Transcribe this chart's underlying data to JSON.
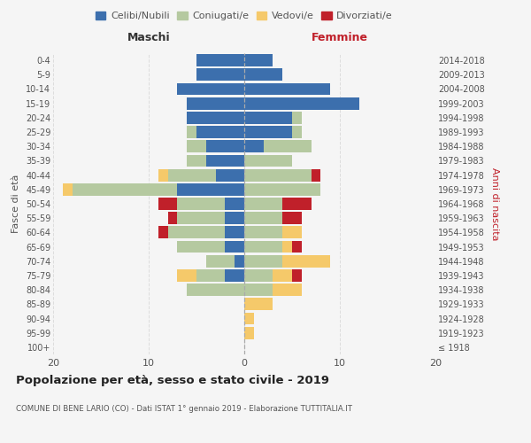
{
  "age_groups": [
    "100+",
    "95-99",
    "90-94",
    "85-89",
    "80-84",
    "75-79",
    "70-74",
    "65-69",
    "60-64",
    "55-59",
    "50-54",
    "45-49",
    "40-44",
    "35-39",
    "30-34",
    "25-29",
    "20-24",
    "15-19",
    "10-14",
    "5-9",
    "0-4"
  ],
  "birth_years": [
    "≤ 1918",
    "1919-1923",
    "1924-1928",
    "1929-1933",
    "1934-1938",
    "1939-1943",
    "1944-1948",
    "1949-1953",
    "1954-1958",
    "1959-1963",
    "1964-1968",
    "1969-1973",
    "1974-1978",
    "1979-1983",
    "1984-1988",
    "1989-1993",
    "1994-1998",
    "1999-2003",
    "2004-2008",
    "2009-2013",
    "2014-2018"
  ],
  "maschi": {
    "celibi": [
      0,
      0,
      0,
      0,
      0,
      2,
      1,
      2,
      2,
      2,
      2,
      7,
      3,
      4,
      4,
      5,
      6,
      6,
      7,
      5,
      5
    ],
    "coniugati": [
      0,
      0,
      0,
      0,
      6,
      3,
      3,
      5,
      6,
      5,
      5,
      11,
      5,
      2,
      2,
      1,
      0,
      0,
      0,
      0,
      0
    ],
    "vedovi": [
      0,
      0,
      0,
      0,
      0,
      2,
      0,
      0,
      0,
      0,
      0,
      1,
      1,
      0,
      0,
      0,
      0,
      0,
      0,
      0,
      0
    ],
    "divorziati": [
      0,
      0,
      0,
      0,
      0,
      0,
      0,
      0,
      1,
      1,
      2,
      0,
      0,
      0,
      0,
      0,
      0,
      0,
      0,
      0,
      0
    ]
  },
  "femmine": {
    "nubili": [
      0,
      0,
      0,
      0,
      0,
      0,
      0,
      0,
      0,
      0,
      0,
      0,
      0,
      0,
      2,
      5,
      5,
      12,
      9,
      4,
      3
    ],
    "coniugate": [
      0,
      0,
      0,
      0,
      3,
      3,
      4,
      4,
      4,
      4,
      4,
      8,
      7,
      5,
      5,
      1,
      1,
      0,
      0,
      0,
      0
    ],
    "vedove": [
      0,
      1,
      1,
      3,
      3,
      2,
      5,
      1,
      2,
      0,
      0,
      0,
      0,
      0,
      0,
      0,
      0,
      0,
      0,
      0,
      0
    ],
    "divorziate": [
      0,
      0,
      0,
      0,
      0,
      1,
      0,
      1,
      0,
      2,
      3,
      0,
      1,
      0,
      0,
      0,
      0,
      0,
      0,
      0,
      0
    ]
  },
  "colors": {
    "celibi_nubili": "#3c6fad",
    "coniugati": "#b5c9a0",
    "vedovi": "#f5c96a",
    "divorziati": "#c0202a"
  },
  "xlim": 20,
  "title": "Popolazione per età, sesso e stato civile - 2019",
  "subtitle": "COMUNE DI BENE LARIO (CO) - Dati ISTAT 1° gennaio 2019 - Elaborazione TUTTITALIA.IT",
  "ylabel_left": "Fasce di età",
  "ylabel_right": "Anni di nascita",
  "xlabel_left": "Maschi",
  "xlabel_right": "Femmine",
  "background_color": "#f5f5f5",
  "legend_labels": [
    "Celibi/Nubili",
    "Coniugati/e",
    "Vedovi/e",
    "Divorziati/e"
  ]
}
